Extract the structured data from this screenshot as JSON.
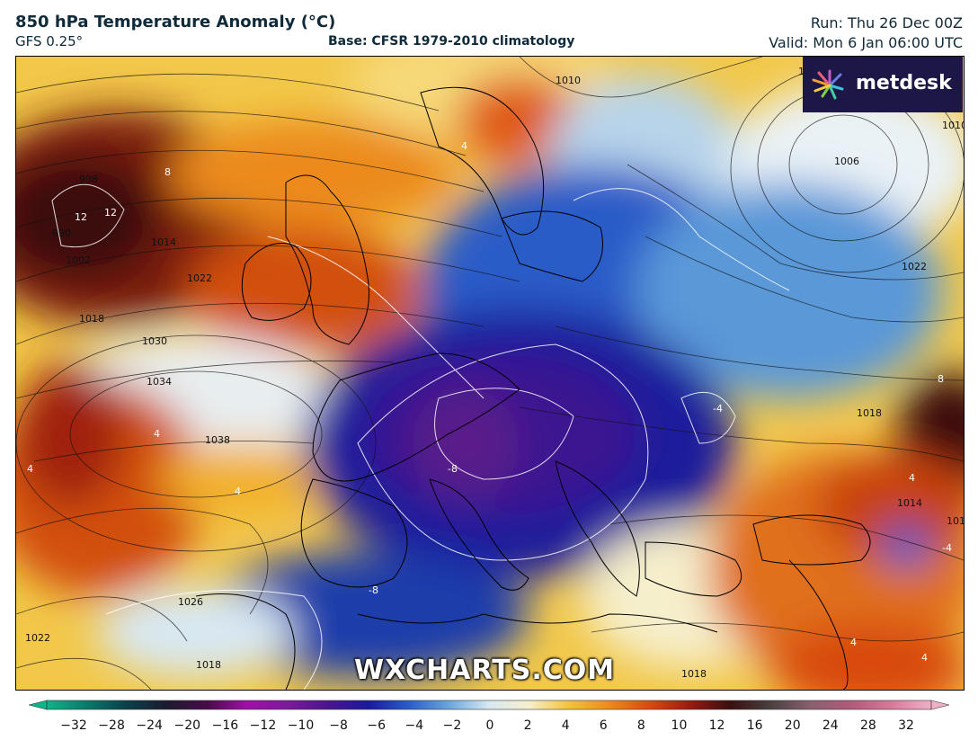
{
  "header": {
    "title": "850 hPa Temperature Anomaly (°C)",
    "model": "GFS 0.25°",
    "base": "Base: CFSR 1979-2010 climatology",
    "run": "Run: Thu 26 Dec 00Z",
    "valid": "Valid: Mon 6 Jan 06:00 UTC"
  },
  "brand": {
    "logo": "metdesk",
    "watermark": "WXCHARTS.COM",
    "logo_bg": "#1d1748"
  },
  "isobar_labels": [
    "990",
    "1010",
    "1010",
    "1010",
    "1006",
    "1014",
    "1018",
    "1022",
    "1030",
    "1034",
    "1038",
    "1026",
    "1022",
    "1018",
    "1018",
    "1022",
    "1018",
    "1014",
    "1010",
    "998",
    "1002"
  ],
  "anomaly_labels": [
    "12",
    "12",
    "8",
    "4",
    "4",
    "4",
    "4",
    "-8",
    "-8",
    "-4",
    "8",
    "4",
    "4",
    "4",
    "-4"
  ],
  "colorbar": {
    "ticks": [
      "−32",
      "−28",
      "−24",
      "−20",
      "−16",
      "−12",
      "−10",
      "−8",
      "−6",
      "−4",
      "−2",
      "0",
      "2",
      "4",
      "6",
      "8",
      "10",
      "12",
      "16",
      "20",
      "24",
      "28",
      "32"
    ],
    "colors": [
      "#10b38a",
      "#0a7a6a",
      "#0b3f4a",
      "#1c1a2e",
      "#4a0b4a",
      "#a010a8",
      "#7a1a9a",
      "#4a1590",
      "#1a1a9c",
      "#2a5cc8",
      "#6aa6dc",
      "#d8e8f2",
      "#f6efcc",
      "#f2c23a",
      "#ec8a1c",
      "#d84a10",
      "#9a1a10",
      "#3a0f0f",
      "#4a4040",
      "#8a6070",
      "#b05a7a",
      "#d8799a",
      "#f0b0c8"
    ]
  }
}
